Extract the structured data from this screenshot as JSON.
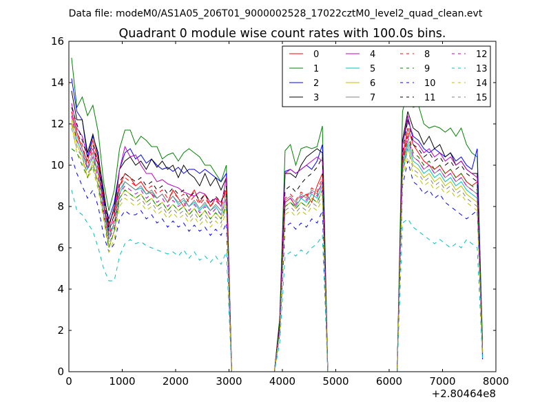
{
  "figure": {
    "suptitle": "Data file: modeM0/AS1A05_206T01_9000002528_17022cztM0_level2_quad_clean.evt"
  },
  "chart_data": {
    "type": "line",
    "title": "Quadrant 0 module wise count rates with 100.0s bins.",
    "xlabel": "",
    "ylabel": "",
    "x_offset_label": "+2.80464e8",
    "xlim": [
      0,
      8000
    ],
    "ylim": [
      0,
      16
    ],
    "xticks": [
      0,
      1000,
      2000,
      3000,
      4000,
      5000,
      6000,
      7000,
      8000
    ],
    "yticks": [
      0,
      2,
      4,
      6,
      8,
      10,
      12,
      14,
      16
    ],
    "grid": false,
    "legend_position": "top-right",
    "legend_columns": 4,
    "segments": [
      {
        "x_start": 50,
        "x_step": 100,
        "n": 31
      },
      {
        "x_start": 3850,
        "x_step": 100,
        "n": 11
      },
      {
        "x_start": 6150,
        "x_step": 100,
        "n": 17
      }
    ],
    "series": [
      {
        "name": "0",
        "color": "#ff0000",
        "dash": "solid",
        "seg1": [
          12.6,
          11.6,
          10.8,
          10.2,
          11.2,
          10.2,
          8.6,
          7.2,
          7.8,
          9.0,
          9.6,
          9.4,
          9.0,
          9.2,
          8.8,
          8.6,
          8.4,
          8.6,
          8.2,
          8.8,
          8.4,
          8.0,
          8.4,
          8.8,
          8.2,
          8.6,
          8.0,
          8.4,
          8.2,
          8.8,
          0.0
        ],
        "seg2": [
          0.0,
          2.0,
          8.2,
          8.4,
          8.0,
          8.4,
          8.6,
          8.2,
          9.0,
          9.6,
          0.0
        ],
        "seg3": [
          0.0,
          10.4,
          11.8,
          11.0,
          10.6,
          10.2,
          10.0,
          9.8,
          10.0,
          9.6,
          9.8,
          9.4,
          9.6,
          9.2,
          9.0,
          9.2,
          1.0
        ]
      },
      {
        "name": "1",
        "color": "#008000",
        "dash": "solid",
        "seg1": [
          15.2,
          12.8,
          13.3,
          12.4,
          12.9,
          11.6,
          9.2,
          7.8,
          8.8,
          10.8,
          11.7,
          11.7,
          11.0,
          11.4,
          11.2,
          10.9,
          10.9,
          10.3,
          10.5,
          10.6,
          10.2,
          10.6,
          10.8,
          10.6,
          10.4,
          10.0,
          10.0,
          9.6,
          9.2,
          10.0,
          0.0
        ],
        "seg2": [
          0.0,
          2.6,
          10.7,
          11.0,
          10.0,
          10.8,
          10.9,
          10.8,
          10.9,
          11.9,
          0.0
        ],
        "seg3": [
          0.0,
          12.6,
          13.6,
          12.8,
          12.9,
          12.0,
          11.8,
          11.9,
          11.8,
          11.6,
          11.8,
          11.4,
          11.8,
          11.0,
          10.6,
          10.4,
          1.5
        ]
      },
      {
        "name": "2",
        "color": "#0000ff",
        "dash": "solid",
        "seg1": [
          14.2,
          12.6,
          12.2,
          10.4,
          11.4,
          10.6,
          8.4,
          7.4,
          8.2,
          9.8,
          10.6,
          10.8,
          10.3,
          10.5,
          10.1,
          10.3,
          10.0,
          9.8,
          9.9,
          9.7,
          9.9,
          9.6,
          9.8,
          9.8,
          9.6,
          9.8,
          9.6,
          9.4,
          9.2,
          9.6,
          0.0
        ],
        "seg2": [
          0.0,
          2.4,
          9.7,
          9.8,
          9.6,
          9.8,
          10.0,
          9.8,
          10.2,
          11.0,
          0.0
        ],
        "seg3": [
          0.0,
          11.0,
          12.2,
          11.4,
          11.2,
          10.8,
          10.6,
          10.8,
          10.6,
          10.4,
          10.6,
          10.2,
          10.4,
          10.0,
          9.8,
          10.8,
          0.6
        ]
      },
      {
        "name": "3",
        "color": "#000000",
        "dash": "solid",
        "seg1": [
          13.6,
          12.2,
          12.2,
          10.6,
          11.5,
          10.4,
          8.8,
          7.0,
          8.0,
          9.8,
          10.2,
          10.4,
          10.0,
          10.2,
          9.8,
          10.3,
          9.9,
          10.2,
          9.8,
          10.0,
          9.4,
          10.0,
          9.6,
          9.4,
          9.0,
          9.6,
          9.0,
          9.4,
          8.8,
          9.4,
          0.0
        ],
        "seg2": [
          0.0,
          2.4,
          9.6,
          9.6,
          9.4,
          10.0,
          10.4,
          10.6,
          10.8,
          10.6,
          0.0
        ],
        "seg3": [
          0.0,
          11.2,
          12.6,
          11.8,
          11.6,
          11.0,
          11.4,
          10.8,
          11.0,
          10.4,
          10.6,
          10.0,
          10.2,
          9.8,
          9.6,
          9.6,
          0.9
        ]
      },
      {
        "name": "4",
        "color": "#bf00bf",
        "dash": "solid",
        "seg1": [
          13.0,
          11.8,
          11.4,
          10.4,
          10.8,
          10.0,
          8.2,
          6.8,
          7.6,
          9.8,
          10.9,
          10.4,
          10.5,
          10.0,
          9.6,
          9.6,
          9.2,
          9.3,
          9.1,
          9.0,
          8.9,
          8.7,
          8.6,
          8.5,
          8.7,
          8.6,
          8.2,
          8.4,
          8.0,
          9.4,
          0.0
        ],
        "seg2": [
          0.0,
          2.2,
          9.6,
          9.8,
          9.6,
          9.8,
          10.0,
          10.2,
          10.4,
          10.2,
          0.0
        ],
        "seg3": [
          0.0,
          11.0,
          12.4,
          11.2,
          11.0,
          10.6,
          10.8,
          10.4,
          10.6,
          10.2,
          10.4,
          10.0,
          10.2,
          9.8,
          9.6,
          9.4,
          1.0
        ]
      },
      {
        "name": "5",
        "color": "#00bfbf",
        "dash": "solid",
        "seg1": [
          12.0,
          11.2,
          10.6,
          9.8,
          10.4,
          9.6,
          8.0,
          6.6,
          7.2,
          8.6,
          9.2,
          9.0,
          8.8,
          8.9,
          8.6,
          8.7,
          8.4,
          8.6,
          8.2,
          8.5,
          8.1,
          8.3,
          8.0,
          8.2,
          7.8,
          8.1,
          7.8,
          8.0,
          7.6,
          8.4,
          0.0
        ],
        "seg2": [
          0.0,
          2.0,
          8.0,
          8.2,
          8.0,
          8.4,
          8.2,
          8.6,
          8.4,
          9.0,
          0.0
        ],
        "seg3": [
          0.0,
          9.8,
          11.0,
          10.2,
          10.0,
          9.6,
          9.8,
          9.4,
          9.6,
          9.2,
          9.4,
          9.0,
          9.2,
          8.8,
          8.6,
          8.4,
          0.9
        ]
      },
      {
        "name": "6",
        "color": "#bfbf00",
        "dash": "solid",
        "seg1": [
          12.2,
          11.0,
          10.4,
          9.4,
          10.2,
          9.2,
          7.6,
          6.0,
          6.8,
          8.4,
          8.8,
          8.6,
          8.4,
          8.6,
          8.2,
          8.4,
          8.0,
          8.2,
          7.8,
          8.1,
          7.8,
          8.0,
          7.6,
          7.9,
          7.5,
          7.8,
          7.4,
          7.7,
          7.4,
          8.2,
          0.0
        ],
        "seg2": [
          0.0,
          2.0,
          8.0,
          8.2,
          7.9,
          8.2,
          8.0,
          8.4,
          8.2,
          8.8,
          0.0
        ],
        "seg3": [
          0.0,
          9.6,
          10.8,
          10.0,
          9.8,
          9.4,
          9.6,
          9.2,
          9.4,
          9.0,
          9.2,
          8.8,
          9.0,
          8.6,
          8.4,
          8.2,
          0.8
        ]
      },
      {
        "name": "7",
        "color": "#808080",
        "dash": "solid",
        "seg1": [
          12.4,
          11.4,
          10.8,
          9.9,
          10.6,
          9.6,
          8.0,
          6.4,
          7.2,
          8.8,
          9.2,
          9.0,
          8.8,
          9.0,
          8.6,
          8.8,
          8.4,
          8.6,
          8.2,
          8.5,
          8.2,
          8.4,
          8.0,
          8.3,
          7.9,
          8.2,
          7.8,
          8.1,
          7.8,
          8.6,
          0.0
        ],
        "seg2": [
          0.0,
          2.1,
          8.3,
          8.5,
          8.2,
          8.6,
          8.4,
          8.8,
          8.6,
          9.2,
          0.0
        ],
        "seg3": [
          0.0,
          10.0,
          11.2,
          10.4,
          10.2,
          9.8,
          10.0,
          9.6,
          9.8,
          9.4,
          9.6,
          9.2,
          9.4,
          9.0,
          8.8,
          8.6,
          0.9
        ]
      },
      {
        "name": "8",
        "color": "#ff0000",
        "dash": "dashed",
        "seg1": [
          12.6,
          11.6,
          11.0,
          10.0,
          10.8,
          9.8,
          8.2,
          6.6,
          7.4,
          9.0,
          9.4,
          9.2,
          9.0,
          9.2,
          8.8,
          9.0,
          8.6,
          8.8,
          8.4,
          8.7,
          8.4,
          8.6,
          8.2,
          8.5,
          8.1,
          8.4,
          8.0,
          8.3,
          8.0,
          8.8,
          0.0
        ],
        "seg2": [
          0.0,
          2.2,
          8.4,
          8.6,
          8.3,
          8.7,
          8.5,
          8.9,
          8.7,
          9.4,
          0.0
        ],
        "seg3": [
          0.0,
          10.2,
          11.6,
          10.6,
          10.4,
          10.0,
          10.2,
          9.8,
          10.0,
          9.6,
          9.8,
          9.4,
          9.6,
          9.2,
          9.0,
          8.8,
          1.0
        ]
      },
      {
        "name": "9",
        "color": "#008000",
        "dash": "dashed",
        "seg1": [
          10.8,
          10.6,
          10.0,
          9.4,
          10.0,
          9.0,
          7.6,
          6.0,
          6.8,
          8.4,
          8.8,
          8.6,
          8.4,
          8.6,
          8.2,
          8.4,
          8.0,
          8.2,
          7.8,
          8.1,
          7.8,
          8.0,
          7.6,
          7.9,
          7.5,
          7.8,
          7.4,
          7.7,
          7.4,
          8.0,
          0.0
        ],
        "seg2": [
          0.0,
          2.0,
          8.0,
          8.2,
          7.9,
          8.2,
          8.0,
          8.4,
          8.2,
          8.8,
          0.0
        ],
        "seg3": [
          0.0,
          10.0,
          11.4,
          10.6,
          10.4,
          10.0,
          10.2,
          9.8,
          10.0,
          9.6,
          9.8,
          9.4,
          9.6,
          9.2,
          9.0,
          8.8,
          0.9
        ]
      },
      {
        "name": "10",
        "color": "#0000ff",
        "dash": "dashed",
        "seg1": [
          10.4,
          9.6,
          9.0,
          8.4,
          8.8,
          8.0,
          6.6,
          5.8,
          6.2,
          7.4,
          7.8,
          7.6,
          7.6,
          7.8,
          7.4,
          7.6,
          7.2,
          7.4,
          7.0,
          7.3,
          7.0,
          7.2,
          6.8,
          7.1,
          6.8,
          7.0,
          6.6,
          6.9,
          6.6,
          7.2,
          0.0
        ],
        "seg2": [
          0.0,
          1.8,
          7.0,
          7.2,
          6.9,
          7.2,
          7.0,
          7.4,
          7.2,
          7.8,
          0.0
        ],
        "seg3": [
          0.0,
          9.0,
          10.2,
          9.2,
          9.0,
          8.6,
          8.8,
          8.4,
          8.6,
          8.2,
          8.0,
          7.8,
          7.6,
          7.4,
          7.6,
          7.8,
          0.8
        ]
      },
      {
        "name": "11",
        "color": "#000000",
        "dash": "dashed",
        "seg1": [
          12.8,
          12.0,
          11.2,
          10.4,
          11.0,
          10.0,
          8.4,
          6.8,
          7.6,
          9.2,
          9.6,
          9.4,
          9.2,
          9.4,
          9.0,
          9.2,
          8.8,
          9.0,
          8.6,
          8.9,
          8.6,
          8.8,
          8.4,
          8.7,
          8.3,
          8.6,
          8.2,
          8.5,
          8.2,
          9.0,
          0.0
        ],
        "seg2": [
          0.0,
          2.3,
          8.8,
          9.0,
          8.7,
          9.1,
          9.4,
          9.6,
          9.9,
          10.4,
          0.0
        ],
        "seg3": [
          0.0,
          10.6,
          12.2,
          11.0,
          10.8,
          10.4,
          10.6,
          10.2,
          10.4,
          10.0,
          10.2,
          9.8,
          10.0,
          9.6,
          9.4,
          9.2,
          1.0
        ]
      },
      {
        "name": "12",
        "color": "#bf00bf",
        "dash": "dashed",
        "seg1": [
          12.4,
          11.2,
          10.6,
          9.8,
          10.4,
          9.4,
          7.8,
          6.4,
          7.0,
          8.6,
          9.0,
          8.8,
          8.6,
          8.8,
          8.4,
          8.6,
          8.2,
          8.4,
          8.0,
          8.3,
          8.0,
          8.2,
          7.8,
          8.1,
          7.7,
          8.0,
          7.6,
          7.9,
          7.6,
          8.4,
          0.0
        ],
        "seg2": [
          0.0,
          2.1,
          8.2,
          8.4,
          8.1,
          8.5,
          8.3,
          8.7,
          8.5,
          9.2,
          0.0
        ],
        "seg3": [
          0.0,
          10.2,
          11.4,
          10.4,
          10.2,
          9.8,
          10.0,
          9.6,
          9.8,
          9.4,
          9.6,
          9.2,
          9.4,
          9.0,
          8.8,
          8.6,
          0.9
        ]
      },
      {
        "name": "13",
        "color": "#00bfbf",
        "dash": "dashed",
        "seg1": [
          8.8,
          7.8,
          7.6,
          7.2,
          6.8,
          6.0,
          5.0,
          4.4,
          4.4,
          5.6,
          6.2,
          6.4,
          6.2,
          6.3,
          6.1,
          6.0,
          5.9,
          5.8,
          5.7,
          5.8,
          5.6,
          5.9,
          5.5,
          5.8,
          5.4,
          5.6,
          5.3,
          5.6,
          5.2,
          5.8,
          0.0
        ],
        "seg2": [
          0.0,
          1.4,
          5.6,
          5.8,
          5.6,
          5.9,
          5.7,
          6.0,
          6.2,
          6.6,
          0.0
        ],
        "seg3": [
          0.0,
          7.2,
          7.4,
          7.0,
          6.8,
          6.6,
          6.4,
          6.2,
          6.4,
          6.2,
          6.0,
          6.2,
          6.0,
          6.4,
          6.2,
          6.0,
          0.6
        ]
      },
      {
        "name": "14",
        "color": "#bfbf00",
        "dash": "dashed",
        "seg1": [
          12.0,
          10.6,
          10.2,
          9.4,
          9.8,
          8.8,
          7.4,
          5.8,
          6.4,
          8.0,
          8.4,
          8.2,
          8.0,
          8.2,
          7.8,
          8.0,
          7.6,
          7.8,
          7.4,
          7.7,
          7.4,
          7.6,
          7.2,
          7.5,
          7.1,
          7.4,
          7.0,
          7.3,
          7.0,
          7.8,
          0.0
        ],
        "seg2": [
          0.0,
          1.9,
          7.6,
          7.8,
          7.5,
          7.8,
          7.6,
          8.0,
          7.8,
          8.4,
          0.0
        ],
        "seg3": [
          0.0,
          9.4,
          10.4,
          9.6,
          9.4,
          9.0,
          9.2,
          8.8,
          9.0,
          8.6,
          8.8,
          8.4,
          8.6,
          8.2,
          8.0,
          7.8,
          0.8
        ]
      },
      {
        "name": "15",
        "color": "#808080",
        "dash": "dashed",
        "seg1": [
          11.8,
          10.8,
          10.4,
          9.6,
          10.0,
          9.0,
          7.6,
          6.2,
          6.8,
          8.2,
          8.6,
          8.4,
          8.2,
          8.4,
          8.0,
          8.2,
          7.8,
          8.0,
          7.6,
          7.9,
          7.6,
          7.8,
          7.4,
          7.7,
          7.3,
          7.6,
          7.2,
          7.5,
          7.2,
          8.0,
          0.0
        ],
        "seg2": [
          0.0,
          2.0,
          7.8,
          8.0,
          7.7,
          8.0,
          7.8,
          8.2,
          8.0,
          8.6,
          0.0
        ],
        "seg3": [
          0.0,
          9.6,
          10.8,
          9.8,
          9.6,
          9.2,
          9.4,
          9.0,
          9.2,
          8.8,
          9.0,
          8.6,
          8.8,
          8.4,
          8.2,
          8.0,
          0.9
        ]
      }
    ]
  }
}
